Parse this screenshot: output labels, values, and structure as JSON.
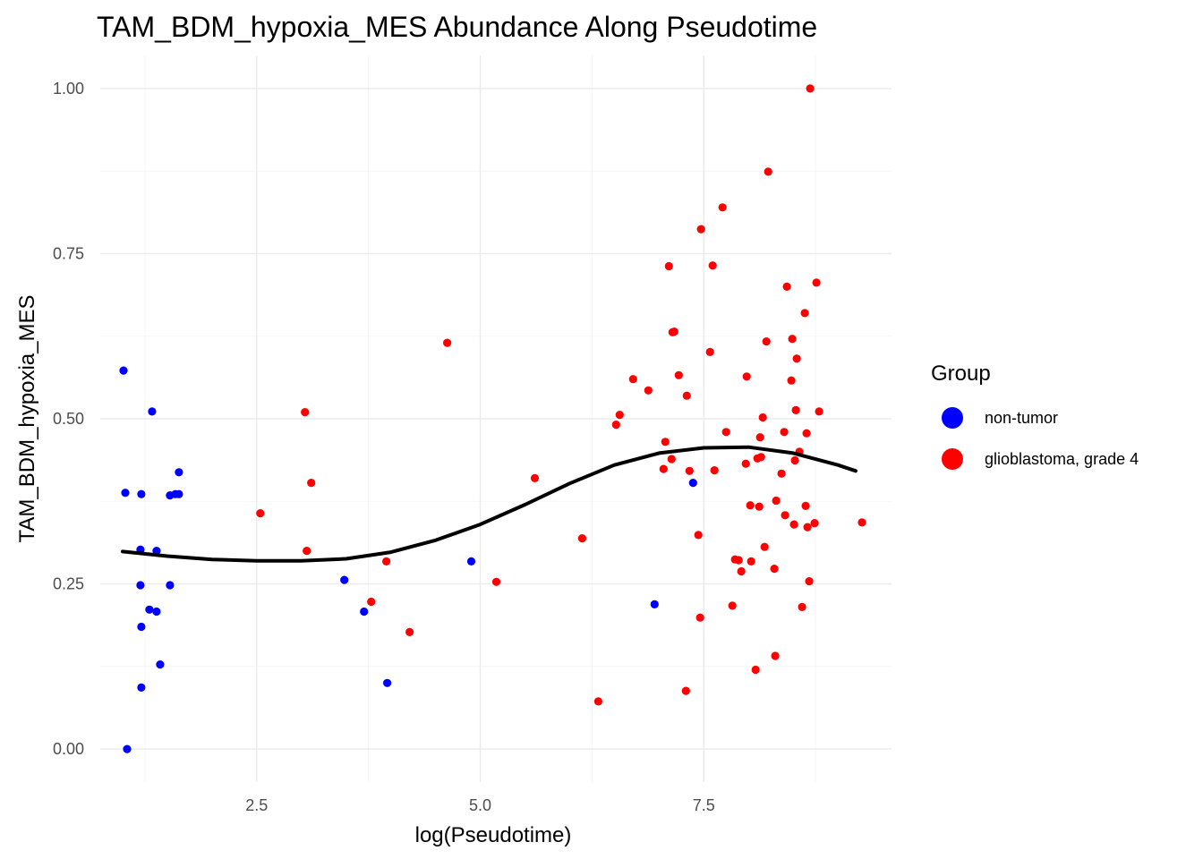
{
  "chart_data": {
    "type": "scatter",
    "title": "TAM_BDM_hypoxia_MES Abundance Along Pseudotime",
    "xlabel": "log(Pseudotime)",
    "ylabel": "TAM_BDM_hypoxia_MES",
    "xlim": [
      0.75,
      9.6
    ],
    "ylim": [
      -0.05,
      1.05
    ],
    "x_ticks": [
      2.5,
      5.0,
      7.5
    ],
    "x_tick_labels": [
      "2.5",
      "5.0",
      "7.5"
    ],
    "y_ticks": [
      0.0,
      0.25,
      0.5,
      0.75,
      1.0
    ],
    "y_tick_labels": [
      "0.00",
      "0.25",
      "0.50",
      "0.75",
      "1.00"
    ],
    "grid": true,
    "legend": {
      "title": "Group",
      "position": "right"
    },
    "series": [
      {
        "name": "non-tumor",
        "color": "#0000ff",
        "x": [
          1.01,
          1.03,
          1.05,
          1.2,
          1.2,
          1.21,
          1.21,
          1.21,
          1.3,
          1.33,
          1.38,
          1.38,
          1.42,
          1.53,
          1.53,
          1.59,
          1.63,
          1.63,
          3.48,
          3.7,
          3.96,
          4.9,
          6.95,
          7.38
        ],
        "y": [
          0.573,
          0.388,
          0.0,
          0.248,
          0.302,
          0.185,
          0.386,
          0.093,
          0.211,
          0.511,
          0.3,
          0.208,
          0.128,
          0.384,
          0.248,
          0.386,
          0.386,
          0.419,
          0.256,
          0.208,
          0.1,
          0.284,
          0.219,
          0.403
        ]
      },
      {
        "name": "glioblastoma, grade 4",
        "color": "#ff0000",
        "x": [
          2.54,
          3.04,
          3.06,
          3.11,
          3.78,
          3.95,
          4.21,
          4.63,
          5.18,
          5.61,
          6.14,
          6.32,
          6.52,
          6.56,
          6.71,
          6.88,
          7.05,
          7.07,
          7.11,
          7.14,
          7.15,
          7.17,
          7.22,
          7.3,
          7.31,
          7.34,
          7.44,
          7.46,
          7.47,
          7.57,
          7.6,
          7.62,
          7.71,
          7.75,
          7.82,
          7.85,
          7.89,
          7.92,
          7.97,
          7.98,
          8.02,
          8.03,
          8.08,
          8.1,
          8.12,
          8.13,
          8.14,
          8.16,
          8.18,
          8.2,
          8.22,
          8.29,
          8.3,
          8.31,
          8.37,
          8.4,
          8.41,
          8.43,
          8.48,
          8.49,
          8.51,
          8.52,
          8.53,
          8.54,
          8.57,
          8.6,
          8.63,
          8.64,
          8.65,
          8.66,
          8.68,
          8.69,
          8.74,
          8.76,
          8.79,
          9.27
        ],
        "y": [
          0.357,
          0.51,
          0.3,
          0.403,
          0.223,
          0.284,
          0.177,
          0.615,
          0.253,
          0.41,
          0.319,
          0.072,
          0.491,
          0.506,
          0.56,
          0.543,
          0.424,
          0.465,
          0.731,
          0.439,
          0.631,
          0.632,
          0.566,
          0.088,
          0.535,
          0.421,
          0.324,
          0.199,
          0.787,
          0.601,
          0.732,
          0.422,
          0.82,
          0.48,
          0.217,
          0.287,
          0.286,
          0.269,
          0.432,
          0.564,
          0.369,
          0.284,
          0.12,
          0.44,
          0.367,
          0.472,
          0.442,
          0.502,
          0.306,
          0.617,
          0.874,
          0.273,
          0.141,
          0.376,
          0.417,
          0.48,
          0.354,
          0.7,
          0.558,
          0.621,
          0.34,
          0.437,
          0.513,
          0.591,
          0.45,
          0.215,
          0.66,
          0.368,
          0.478,
          0.336,
          0.254,
          1.0,
          0.342,
          0.706,
          0.511,
          0.343
        ]
      },
      {
        "name": "trend",
        "color": "#000000",
        "x": [
          1.0,
          1.5,
          2.0,
          2.5,
          3.0,
          3.5,
          4.0,
          4.5,
          5.0,
          5.5,
          6.0,
          6.5,
          7.0,
          7.5,
          8.0,
          8.5,
          9.0,
          9.2
        ],
        "y": [
          0.299,
          0.292,
          0.287,
          0.285,
          0.285,
          0.288,
          0.298,
          0.316,
          0.34,
          0.37,
          0.402,
          0.43,
          0.448,
          0.456,
          0.457,
          0.448,
          0.43,
          0.421
        ]
      }
    ]
  }
}
